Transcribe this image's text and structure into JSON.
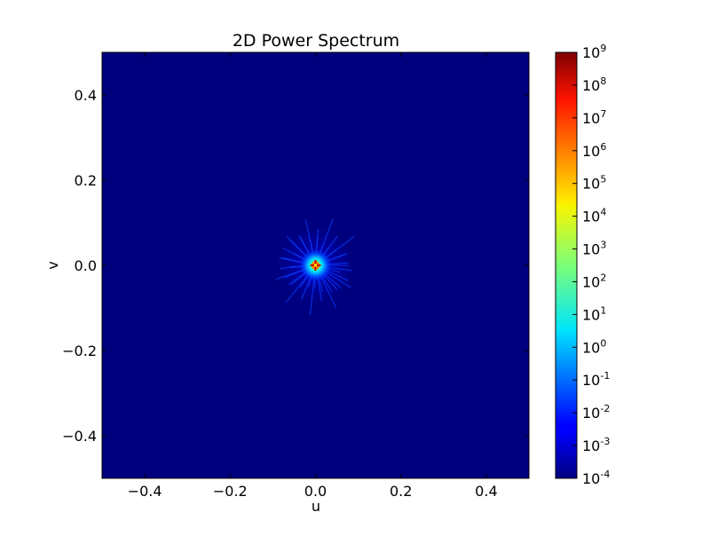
{
  "chart_data": {
    "type": "heatmap",
    "title": "2D Power Spectrum",
    "xlabel": "u",
    "ylabel": "v",
    "xlim": [
      -0.5,
      0.5
    ],
    "ylim": [
      -0.5,
      0.5
    ],
    "xticks": [
      -0.4,
      -0.2,
      0.0,
      0.2,
      0.4
    ],
    "yticks": [
      -0.4,
      -0.2,
      0.0,
      0.2,
      0.4
    ],
    "xtick_labels": [
      "−0.4",
      "−0.2",
      "0.0",
      "0.2",
      "0.4"
    ],
    "ytick_labels": [
      "−0.4",
      "−0.2",
      "0.0",
      "0.2",
      "0.4"
    ],
    "grid": false,
    "colormap": "jet",
    "color_scale": "log",
    "background_color": "#00007f",
    "peak": {
      "u": 0.0,
      "v": 0.0,
      "value": 1000000000
    },
    "colorbar": {
      "scale": "log",
      "range": [
        0.0001,
        1000000000
      ],
      "ticks": [
        {
          "base": "10",
          "exp": "9",
          "value": 1000000000
        },
        {
          "base": "10",
          "exp": "8",
          "value": 100000000
        },
        {
          "base": "10",
          "exp": "7",
          "value": 10000000
        },
        {
          "base": "10",
          "exp": "6",
          "value": 1000000
        },
        {
          "base": "10",
          "exp": "5",
          "value": 100000
        },
        {
          "base": "10",
          "exp": "4",
          "value": 10000
        },
        {
          "base": "10",
          "exp": "3",
          "value": 1000
        },
        {
          "base": "10",
          "exp": "2",
          "value": 100
        },
        {
          "base": "10",
          "exp": "1",
          "value": 10
        },
        {
          "base": "10",
          "exp": "0",
          "value": 1
        },
        {
          "base": "10",
          "exp": "-1",
          "value": 0.1
        },
        {
          "base": "10",
          "exp": "-2",
          "value": 0.01
        },
        {
          "base": "10",
          "exp": "-3",
          "value": 0.001
        },
        {
          "base": "10",
          "exp": "-4",
          "value": 0.0001
        }
      ]
    }
  }
}
